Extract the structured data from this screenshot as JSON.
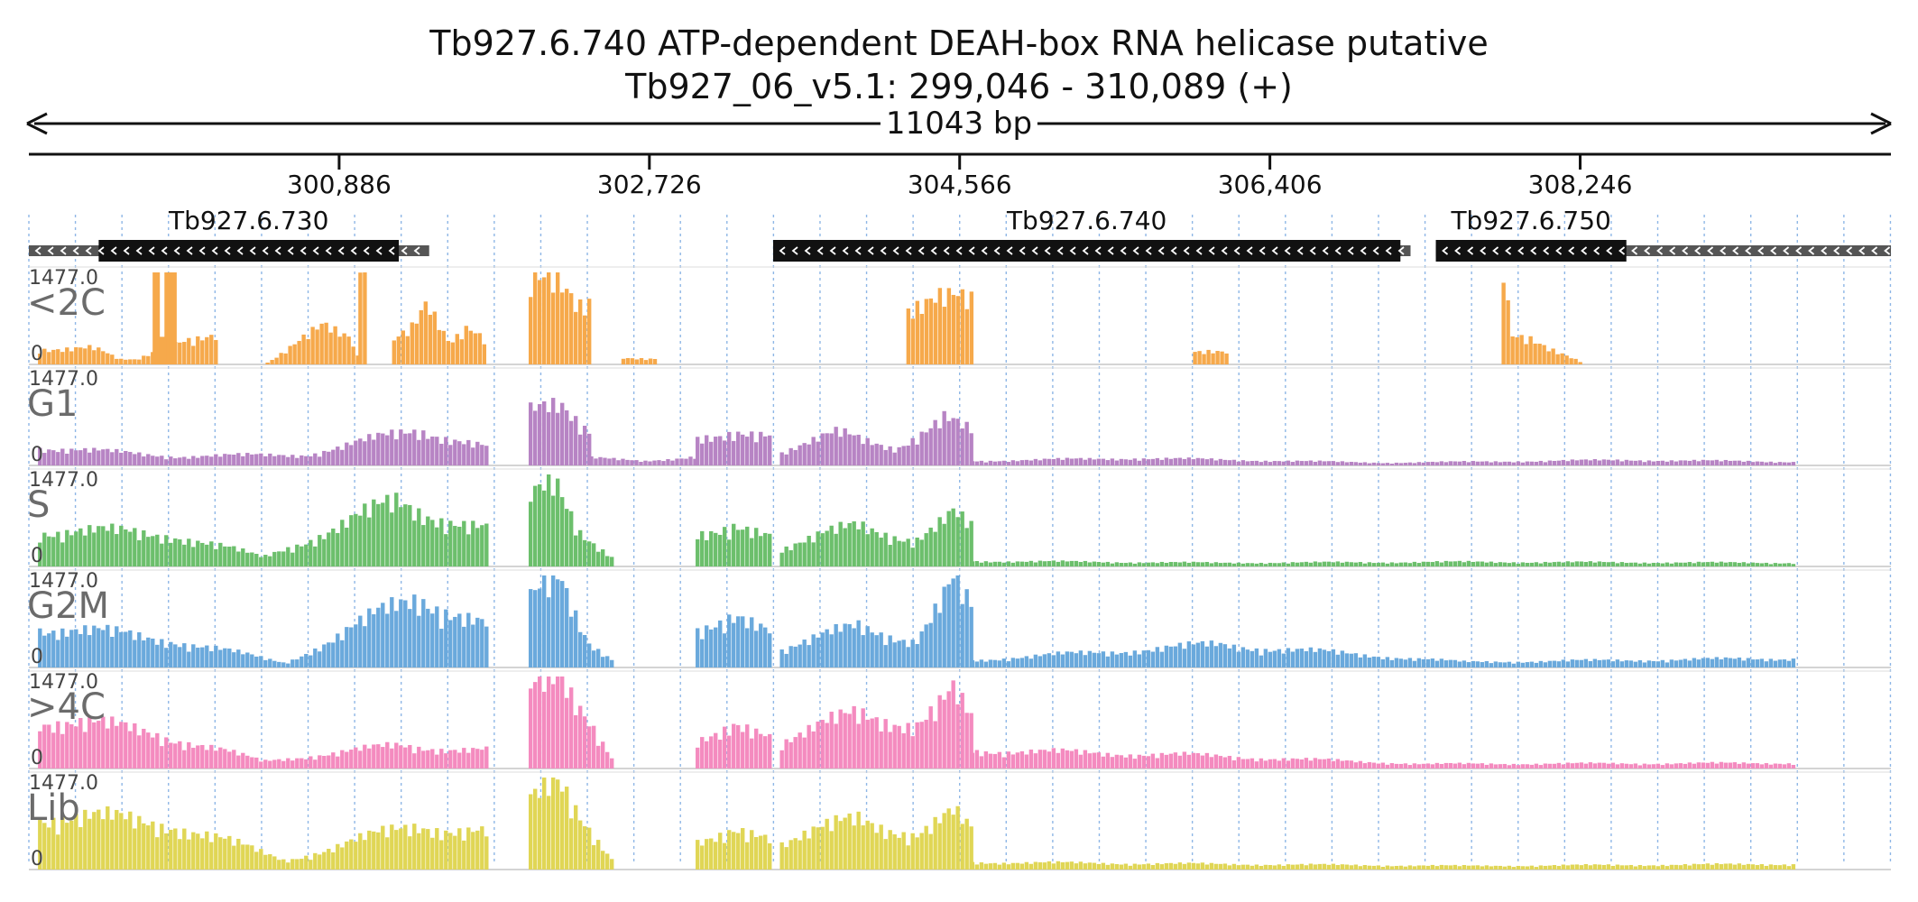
{
  "title_line1": "Tb927.6.740  ATP-dependent DEAH-box RNA helicase  putative",
  "title_line2": "Tb927_06_v5.1: 299,046 - 310,089 (+)",
  "span_label": "11043 bp",
  "chart_data": {
    "type": "area",
    "title": "Tb927.6.740  ATP-dependent DEAH-box RNA helicase  putative",
    "subtitle": "Tb927_06_v5.1: 299,046 - 310,089 (+)",
    "chromosome": "Tb927_06_v5.1",
    "x_range": [
      299046,
      310089
    ],
    "span_bp": 11043,
    "x_ticks": [
      300886,
      302726,
      304566,
      306406,
      308246
    ],
    "x_tick_labels": [
      "300,886",
      "302,726",
      "304,566",
      "306,406",
      "308,246"
    ],
    "y_range": [
      0,
      1477.0
    ],
    "y_max_label": "1477.0",
    "y_min_label": "0",
    "genes": [
      {
        "name": "Tb927.6.730",
        "start": 299046,
        "end": 301420,
        "cds_start": 299460,
        "cds_end": 301240,
        "strand": "-"
      },
      {
        "name": "Tb927.6.740",
        "start": 303460,
        "end": 307240,
        "cds_start": 303460,
        "cds_end": 307180,
        "strand": "-"
      },
      {
        "name": "Tb927.6.750",
        "start": 307390,
        "end": 310089,
        "cds_start": 307390,
        "cds_end": 308520,
        "strand": "-"
      }
    ],
    "series": [
      {
        "name": "<2C",
        "color": "#f6a94b",
        "segments": [
          {
            "start": 299100,
            "end": 300150,
            "profile": [
              [
                0.3,
                0.18
              ],
              [
                0.45,
                0.05
              ],
              [
                0.55,
                0.05
              ],
              [
                0.8,
                0.3
              ],
              [
                1.0,
                0.3
              ]
            ],
            "spikes": [
              [
                299780,
                1.0
              ],
              [
                299850,
                1.0
              ],
              [
                299880,
                1.0
              ],
              [
                299820,
                0.3
              ]
            ]
          },
          {
            "start": 300450,
            "end": 301000,
            "profile": [
              [
                0.0,
                0.02
              ],
              [
                0.6,
                0.4
              ],
              [
                0.9,
                0.3
              ],
              [
                1.0,
                0.02
              ]
            ]
          },
          {
            "start": 301000,
            "end": 301050,
            "profile": [
              [
                0.0,
                0.9
              ],
              [
                1.0,
                0.9
              ]
            ]
          },
          {
            "start": 301200,
            "end": 301750,
            "profile": [
              [
                0.0,
                0.3
              ],
              [
                0.2,
                0.4
              ],
              [
                0.35,
                0.6
              ],
              [
                0.6,
                0.2
              ],
              [
                0.8,
                0.4
              ],
              [
                1.0,
                0.3
              ]
            ]
          },
          {
            "start": 302010,
            "end": 302370,
            "profile": [
              [
                0.0,
                0.8
              ],
              [
                0.35,
                0.9
              ],
              [
                0.55,
                0.85
              ],
              [
                0.8,
                0.7
              ],
              [
                1.0,
                0.8
              ]
            ]
          },
          {
            "start": 302560,
            "end": 302760,
            "profile": [
              [
                0.0,
                0.07
              ],
              [
                1.0,
                0.07
              ]
            ]
          },
          {
            "start": 304250,
            "end": 304630,
            "profile": [
              [
                0.0,
                0.65
              ],
              [
                0.5,
                0.7
              ],
              [
                1.0,
                0.65
              ]
            ]
          },
          {
            "start": 305950,
            "end": 306160,
            "profile": [
              [
                0.0,
                0.15
              ],
              [
                0.5,
                0.17
              ],
              [
                1.0,
                0.15
              ]
            ]
          },
          {
            "start": 307780,
            "end": 308250,
            "profile": [
              [
                0.0,
                1.0
              ],
              [
                0.1,
                0.3
              ],
              [
                0.35,
                0.3
              ],
              [
                1.0,
                0.02
              ]
            ]
          }
        ]
      },
      {
        "name": "G1",
        "color": "#b784c4",
        "segments": [
          {
            "start": 299100,
            "end": 301750,
            "profile": [
              [
                0.0,
                0.2
              ],
              [
                0.3,
                0.1
              ],
              [
                0.6,
                0.12
              ],
              [
                0.85,
                0.4
              ],
              [
                1.0,
                0.2
              ]
            ]
          },
          {
            "start": 302010,
            "end": 302370,
            "profile": [
              [
                0.0,
                0.55
              ],
              [
                0.5,
                0.65
              ],
              [
                1.0,
                0.4
              ]
            ]
          },
          {
            "start": 302370,
            "end": 303000,
            "profile": [
              [
                0.0,
                0.08
              ],
              [
                0.5,
                0.05
              ],
              [
                1.0,
                0.1
              ]
            ]
          },
          {
            "start": 303000,
            "end": 303450,
            "profile": [
              [
                0.0,
                0.3
              ],
              [
                0.5,
                0.4
              ],
              [
                1.0,
                0.3
              ]
            ]
          },
          {
            "start": 303500,
            "end": 304630,
            "profile": [
              [
                0.0,
                0.15
              ],
              [
                0.3,
                0.35
              ],
              [
                0.6,
                0.2
              ],
              [
                0.85,
                0.5
              ],
              [
                1.0,
                0.35
              ]
            ]
          },
          {
            "start": 304630,
            "end": 309500,
            "profile": [
              [
                0.0,
                0.05
              ],
              [
                0.2,
                0.08
              ],
              [
                0.5,
                0.03
              ],
              [
                0.8,
                0.06
              ],
              [
                1.0,
                0.04
              ]
            ]
          }
        ]
      },
      {
        "name": "S",
        "color": "#6cbf6c",
        "segments": [
          {
            "start": 299100,
            "end": 301750,
            "profile": [
              [
                0.0,
                0.4
              ],
              [
                0.3,
                0.35
              ],
              [
                0.5,
                0.1
              ],
              [
                0.8,
                0.7
              ],
              [
                1.0,
                0.4
              ]
            ]
          },
          {
            "start": 302010,
            "end": 302500,
            "profile": [
              [
                0.0,
                0.7
              ],
              [
                0.3,
                0.9
              ],
              [
                0.6,
                0.4
              ],
              [
                1.0,
                0.1
              ]
            ]
          },
          {
            "start": 303000,
            "end": 303450,
            "profile": [
              [
                0.0,
                0.35
              ],
              [
                0.5,
                0.5
              ],
              [
                1.0,
                0.3
              ]
            ]
          },
          {
            "start": 303500,
            "end": 304630,
            "profile": [
              [
                0.0,
                0.2
              ],
              [
                0.4,
                0.45
              ],
              [
                0.7,
                0.3
              ],
              [
                0.9,
                0.55
              ],
              [
                1.0,
                0.4
              ]
            ]
          },
          {
            "start": 304630,
            "end": 309500,
            "profile": [
              [
                0.0,
                0.06
              ],
              [
                0.3,
                0.04
              ],
              [
                0.6,
                0.05
              ],
              [
                1.0,
                0.04
              ]
            ]
          }
        ]
      },
      {
        "name": "G2M",
        "color": "#6aa9dc",
        "segments": [
          {
            "start": 299100,
            "end": 301750,
            "profile": [
              [
                0.0,
                0.45
              ],
              [
                0.3,
                0.3
              ],
              [
                0.55,
                0.05
              ],
              [
                0.85,
                0.8
              ],
              [
                1.0,
                0.45
              ]
            ]
          },
          {
            "start": 302010,
            "end": 302500,
            "profile": [
              [
                0.0,
                0.7
              ],
              [
                0.35,
                1.0
              ],
              [
                0.7,
                0.3
              ],
              [
                1.0,
                0.08
              ]
            ]
          },
          {
            "start": 303000,
            "end": 303450,
            "profile": [
              [
                0.0,
                0.4
              ],
              [
                0.5,
                0.65
              ],
              [
                1.0,
                0.35
              ]
            ]
          },
          {
            "start": 303500,
            "end": 304630,
            "profile": [
              [
                0.0,
                0.2
              ],
              [
                0.4,
                0.45
              ],
              [
                0.7,
                0.3
              ],
              [
                0.9,
                0.9
              ],
              [
                1.0,
                0.6
              ]
            ]
          },
          {
            "start": 304630,
            "end": 309500,
            "profile": [
              [
                0.0,
                0.08
              ],
              [
                0.3,
                0.25
              ],
              [
                0.6,
                0.06
              ],
              [
                1.0,
                0.1
              ]
            ]
          }
        ]
      },
      {
        "name": ">4C",
        "color": "#f48bbf",
        "segments": [
          {
            "start": 299100,
            "end": 301750,
            "profile": [
              [
                0.0,
                0.55
              ],
              [
                0.25,
                0.4
              ],
              [
                0.5,
                0.08
              ],
              [
                0.8,
                0.25
              ],
              [
                1.0,
                0.2
              ]
            ]
          },
          {
            "start": 302010,
            "end": 302500,
            "profile": [
              [
                0.0,
                0.8
              ],
              [
                0.35,
                1.0
              ],
              [
                0.7,
                0.6
              ],
              [
                1.0,
                0.1
              ]
            ]
          },
          {
            "start": 303000,
            "end": 303450,
            "profile": [
              [
                0.0,
                0.3
              ],
              [
                0.5,
                0.55
              ],
              [
                1.0,
                0.3
              ]
            ]
          },
          {
            "start": 303500,
            "end": 304630,
            "profile": [
              [
                0.0,
                0.3
              ],
              [
                0.4,
                0.6
              ],
              [
                0.7,
                0.5
              ],
              [
                0.9,
                0.8
              ],
              [
                1.0,
                0.5
              ]
            ]
          },
          {
            "start": 304630,
            "end": 309500,
            "profile": [
              [
                0.0,
                0.2
              ],
              [
                0.25,
                0.15
              ],
              [
                0.55,
                0.05
              ],
              [
                1.0,
                0.06
              ]
            ]
          }
        ]
      },
      {
        "name": "Lib",
        "color": "#e0d655",
        "segments": [
          {
            "start": 299100,
            "end": 301750,
            "profile": [
              [
                0.0,
                0.6
              ],
              [
                0.3,
                0.5
              ],
              [
                0.55,
                0.1
              ],
              [
                0.85,
                0.5
              ],
              [
                1.0,
                0.4
              ]
            ]
          },
          {
            "start": 302010,
            "end": 302500,
            "profile": [
              [
                0.0,
                0.7
              ],
              [
                0.35,
                0.95
              ],
              [
                0.7,
                0.5
              ],
              [
                1.0,
                0.1
              ]
            ]
          },
          {
            "start": 303000,
            "end": 303450,
            "profile": [
              [
                0.0,
                0.3
              ],
              [
                0.5,
                0.5
              ],
              [
                1.0,
                0.3
              ]
            ]
          },
          {
            "start": 303500,
            "end": 304630,
            "profile": [
              [
                0.0,
                0.3
              ],
              [
                0.4,
                0.55
              ],
              [
                0.7,
                0.4
              ],
              [
                0.9,
                0.6
              ],
              [
                1.0,
                0.4
              ]
            ]
          },
          {
            "start": 304630,
            "end": 309500,
            "profile": [
              [
                0.0,
                0.08
              ],
              [
                0.3,
                0.06
              ],
              [
                0.6,
                0.04
              ],
              [
                1.0,
                0.06
              ]
            ]
          }
        ]
      }
    ],
    "grid": "vertical-dotted"
  }
}
